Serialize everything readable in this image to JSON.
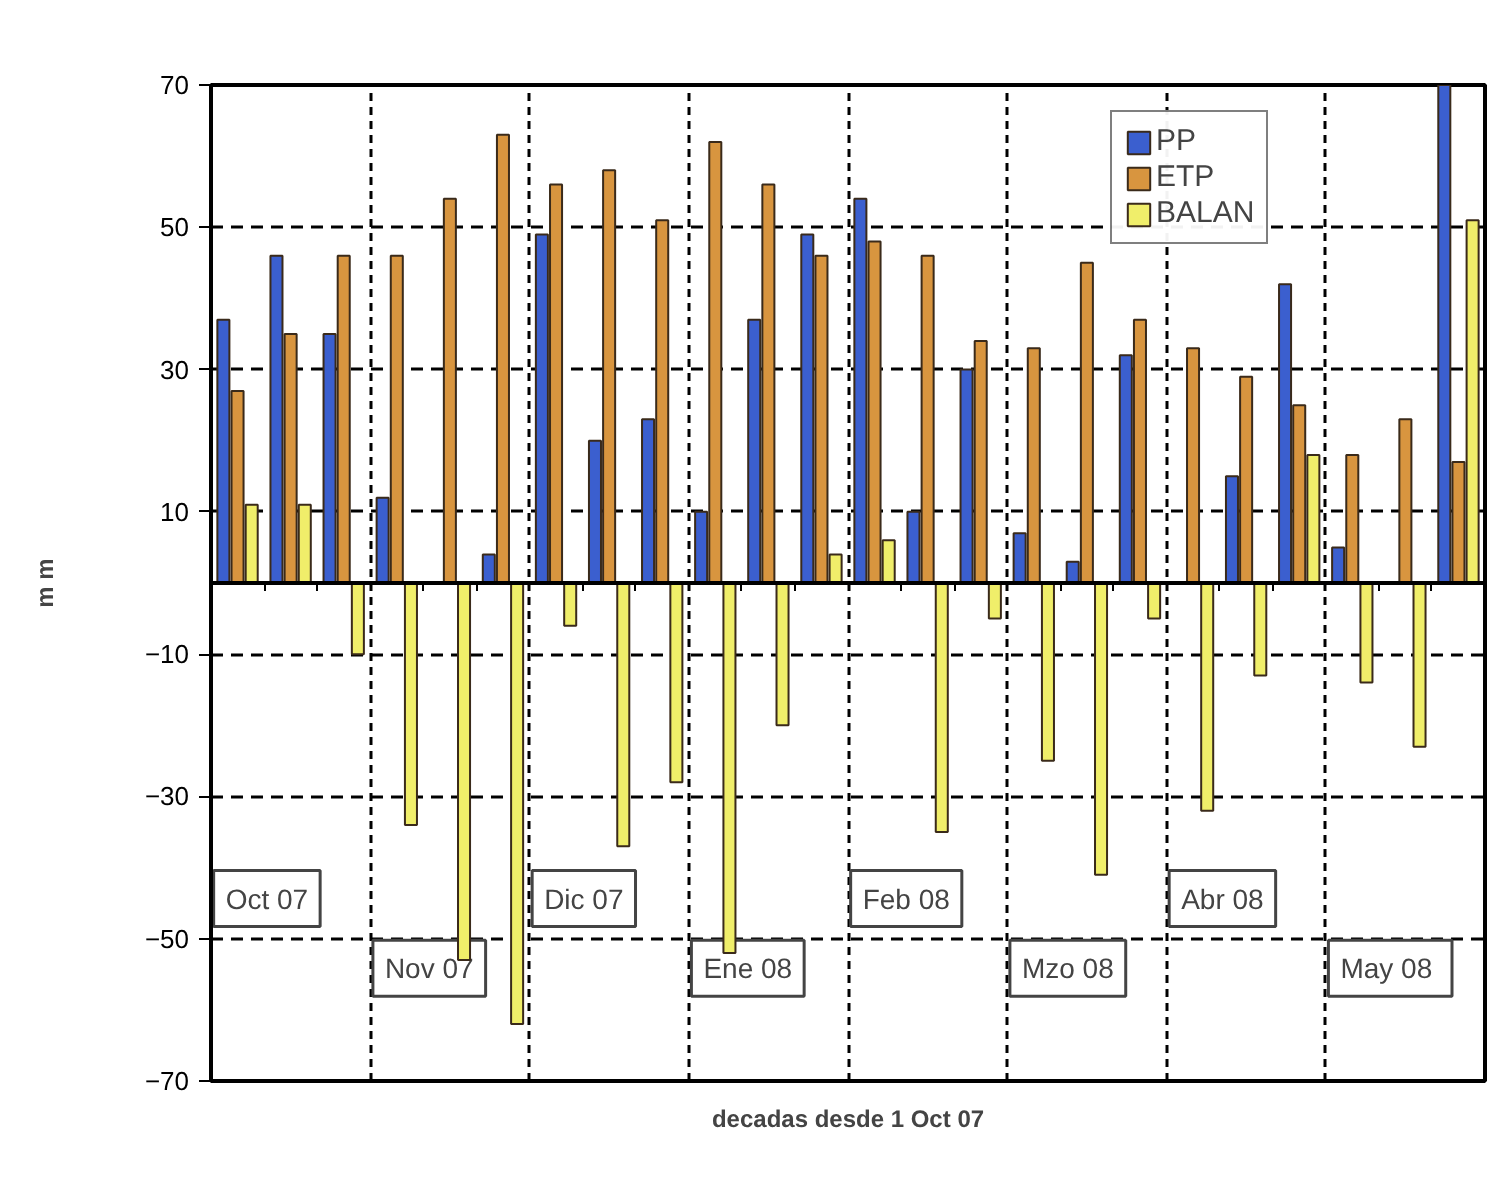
{
  "chart_data": {
    "type": "bar",
    "xlabel": "decadas desde 1 Oct 07",
    "ylabel": "m m",
    "categories": [
      null,
      null,
      null,
      null,
      null,
      null,
      null,
      null,
      null,
      null,
      null,
      null,
      null,
      null,
      null,
      null,
      null,
      null,
      null,
      null,
      null,
      null,
      null,
      null
    ],
    "series": [
      {
        "name": "PP",
        "color": "#3b5fcf",
        "values": [
          37,
          46,
          35,
          12,
          0,
          4,
          49,
          20,
          23,
          10,
          37,
          49,
          54,
          10,
          30,
          7,
          3,
          32,
          0,
          15,
          42,
          5,
          0,
          70
        ]
      },
      {
        "name": "ETP",
        "color": "#d8953f",
        "values": [
          27,
          35,
          46,
          46,
          54,
          63,
          56,
          58,
          51,
          62,
          56,
          46,
          48,
          46,
          34,
          33,
          45,
          37,
          33,
          29,
          25,
          18,
          23,
          17
        ]
      },
      {
        "name": "BALAN",
        "color": "#f0ee6a",
        "values": [
          11,
          11,
          -10,
          -34,
          -53,
          -62,
          -6,
          -37,
          -28,
          -52,
          -20,
          4,
          6,
          -35,
          -5,
          -25,
          -41,
          -5,
          -32,
          -13,
          18,
          -14,
          -23,
          51
        ]
      }
    ],
    "annotations": [
      "Oct 07",
      "Nov 07",
      "Dic 07",
      "Ene 08",
      "Feb 08",
      "Mzo 08",
      "Abr 08",
      "May  08"
    ],
    "ylim": [
      -70,
      70
    ],
    "yticks": [
      -70,
      -50,
      -30,
      -10,
      10,
      30,
      50,
      70
    ],
    "grid": true,
    "legend": "top right",
    "tick_labels": "y"
  }
}
